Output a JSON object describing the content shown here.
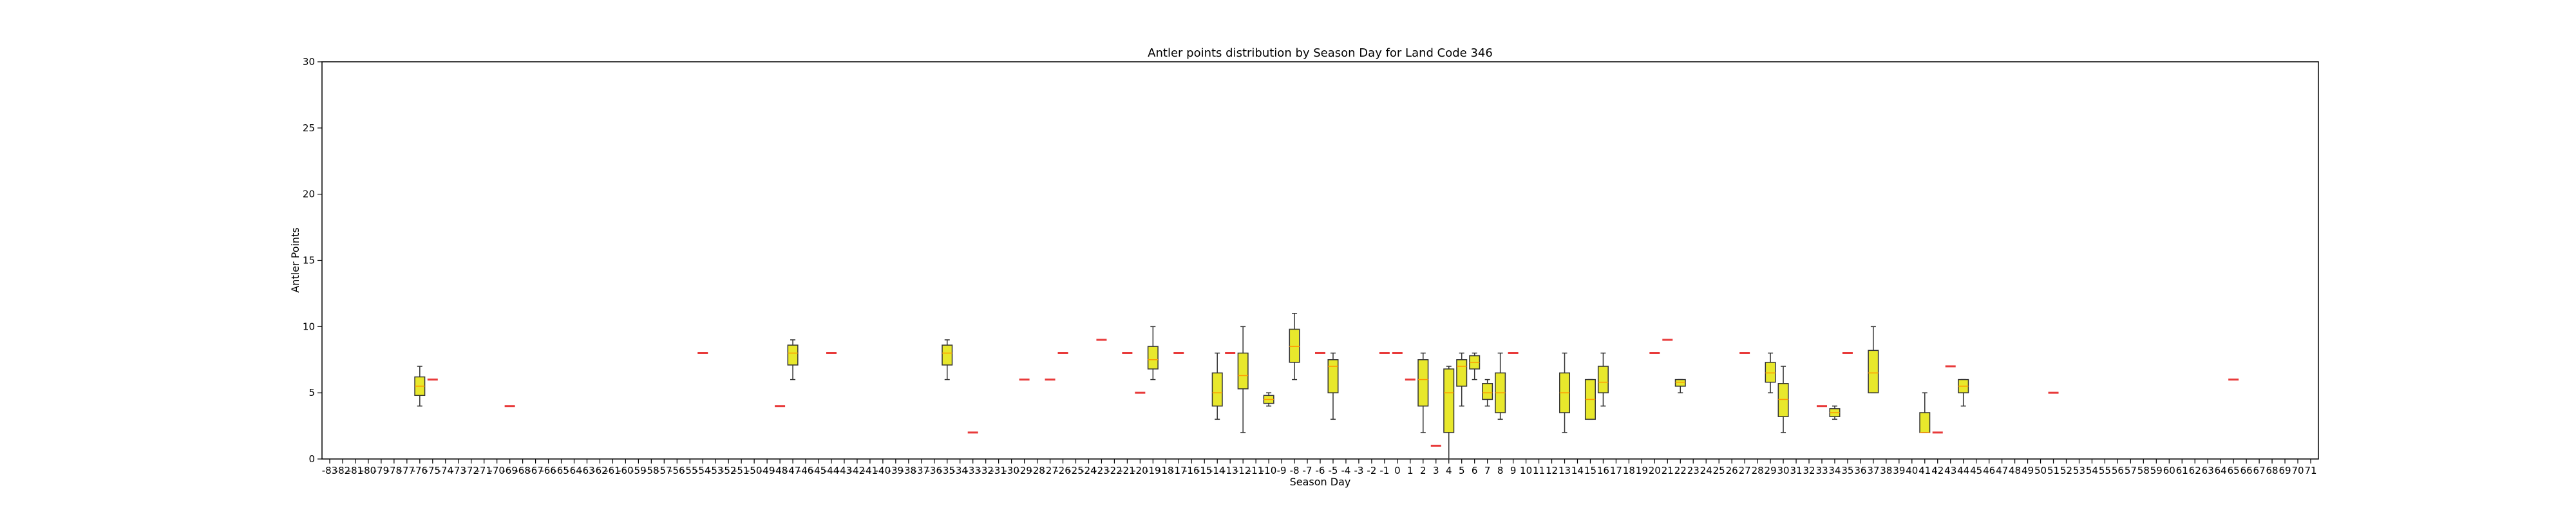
{
  "chart_data": {
    "type": "box",
    "title": "Antler points distribution by Season Day for Land Code 346",
    "xlabel": "Season Day",
    "ylabel": "Antler Points",
    "ylim": [
      0,
      30
    ],
    "yticks": [
      0,
      5,
      10,
      15,
      20,
      25,
      30
    ],
    "x_range": [
      -83,
      71
    ],
    "grid": false,
    "colors": {
      "box_fill": "#e8e82c",
      "box_edge": "#333333",
      "median": "#ff9900",
      "single": "#e83a3a"
    },
    "boxes": [
      {
        "x": -76,
        "min": 4,
        "q1": 4.8,
        "median": 5.5,
        "q3": 6.2,
        "max": 7
      },
      {
        "x": -47,
        "min": 6,
        "q1": 7.1,
        "median": 8,
        "q3": 8.6,
        "max": 9
      },
      {
        "x": -35,
        "min": 6,
        "q1": 7.1,
        "median": 8,
        "q3": 8.6,
        "max": 9
      },
      {
        "x": -19,
        "min": 6,
        "q1": 6.8,
        "median": 7.5,
        "q3": 8.5,
        "max": 10
      },
      {
        "x": -14,
        "min": 3,
        "q1": 4,
        "median": 5,
        "q3": 6.5,
        "max": 8
      },
      {
        "x": -12,
        "min": 2,
        "q1": 5.3,
        "median": 6.3,
        "q3": 8,
        "max": 10
      },
      {
        "x": -10,
        "min": 4,
        "q1": 4.2,
        "median": 4.5,
        "q3": 4.8,
        "max": 5
      },
      {
        "x": -8,
        "min": 6,
        "q1": 7.3,
        "median": 8.5,
        "q3": 9.8,
        "max": 11
      },
      {
        "x": -5,
        "min": 3,
        "q1": 5,
        "median": 7,
        "q3": 7.5,
        "max": 8
      },
      {
        "x": 2,
        "min": 2,
        "q1": 4,
        "median": 6,
        "q3": 7.5,
        "max": 8
      },
      {
        "x": 4,
        "min": 0,
        "q1": 2,
        "median": 5,
        "q3": 6.8,
        "max": 7
      },
      {
        "x": 5,
        "min": 4,
        "q1": 5.5,
        "median": 7,
        "q3": 7.5,
        "max": 8
      },
      {
        "x": 6,
        "min": 6,
        "q1": 6.8,
        "median": 7.3,
        "q3": 7.8,
        "max": 8
      },
      {
        "x": 7,
        "min": 4,
        "q1": 4.5,
        "median": 5,
        "q3": 5.7,
        "max": 6
      },
      {
        "x": 8,
        "min": 3,
        "q1": 3.5,
        "median": 5,
        "q3": 6.5,
        "max": 8
      },
      {
        "x": 13,
        "min": 2,
        "q1": 3.5,
        "median": 5,
        "q3": 6.5,
        "max": 8
      },
      {
        "x": 15,
        "min": 3,
        "q1": 3,
        "median": 4.5,
        "q3": 6,
        "max": 6
      },
      {
        "x": 16,
        "min": 4,
        "q1": 5,
        "median": 5.8,
        "q3": 7,
        "max": 8
      },
      {
        "x": 22,
        "min": 5,
        "q1": 5.5,
        "median": 5.8,
        "q3": 6,
        "max": 6
      },
      {
        "x": 29,
        "min": 5,
        "q1": 5.8,
        "median": 6.5,
        "q3": 7.3,
        "max": 8
      },
      {
        "x": 30,
        "min": 2,
        "q1": 3.2,
        "median": 4.5,
        "q3": 5.7,
        "max": 7
      },
      {
        "x": 34,
        "min": 3,
        "q1": 3.2,
        "median": 3.5,
        "q3": 3.8,
        "max": 4
      },
      {
        "x": 37,
        "min": 5,
        "q1": 5,
        "median": 6.5,
        "q3": 8.2,
        "max": 10
      },
      {
        "x": 41,
        "min": 2,
        "q1": 2,
        "median": 2,
        "q3": 3.5,
        "max": 5
      },
      {
        "x": 44,
        "min": 4,
        "q1": 5,
        "median": 5.5,
        "q3": 6,
        "max": 6
      }
    ],
    "singles": [
      {
        "x": -75,
        "y": 6
      },
      {
        "x": -69,
        "y": 4
      },
      {
        "x": -54,
        "y": 8
      },
      {
        "x": -48,
        "y": 4
      },
      {
        "x": -44,
        "y": 8
      },
      {
        "x": -33,
        "y": 2
      },
      {
        "x": -29,
        "y": 6
      },
      {
        "x": -27,
        "y": 6
      },
      {
        "x": -26,
        "y": 8
      },
      {
        "x": -23,
        "y": 9
      },
      {
        "x": -21,
        "y": 8
      },
      {
        "x": -20,
        "y": 5
      },
      {
        "x": -17,
        "y": 8
      },
      {
        "x": -13,
        "y": 8
      },
      {
        "x": -6,
        "y": 8
      },
      {
        "x": -1,
        "y": 8
      },
      {
        "x": 0,
        "y": 8
      },
      {
        "x": 1,
        "y": 6
      },
      {
        "x": 3,
        "y": 1
      },
      {
        "x": 9,
        "y": 8
      },
      {
        "x": 20,
        "y": 8
      },
      {
        "x": 21,
        "y": 9
      },
      {
        "x": 27,
        "y": 8
      },
      {
        "x": 33,
        "y": 4
      },
      {
        "x": 35,
        "y": 8
      },
      {
        "x": 42,
        "y": 2
      },
      {
        "x": 43,
        "y": 7
      },
      {
        "x": 51,
        "y": 5
      },
      {
        "x": 65,
        "y": 6
      }
    ]
  }
}
